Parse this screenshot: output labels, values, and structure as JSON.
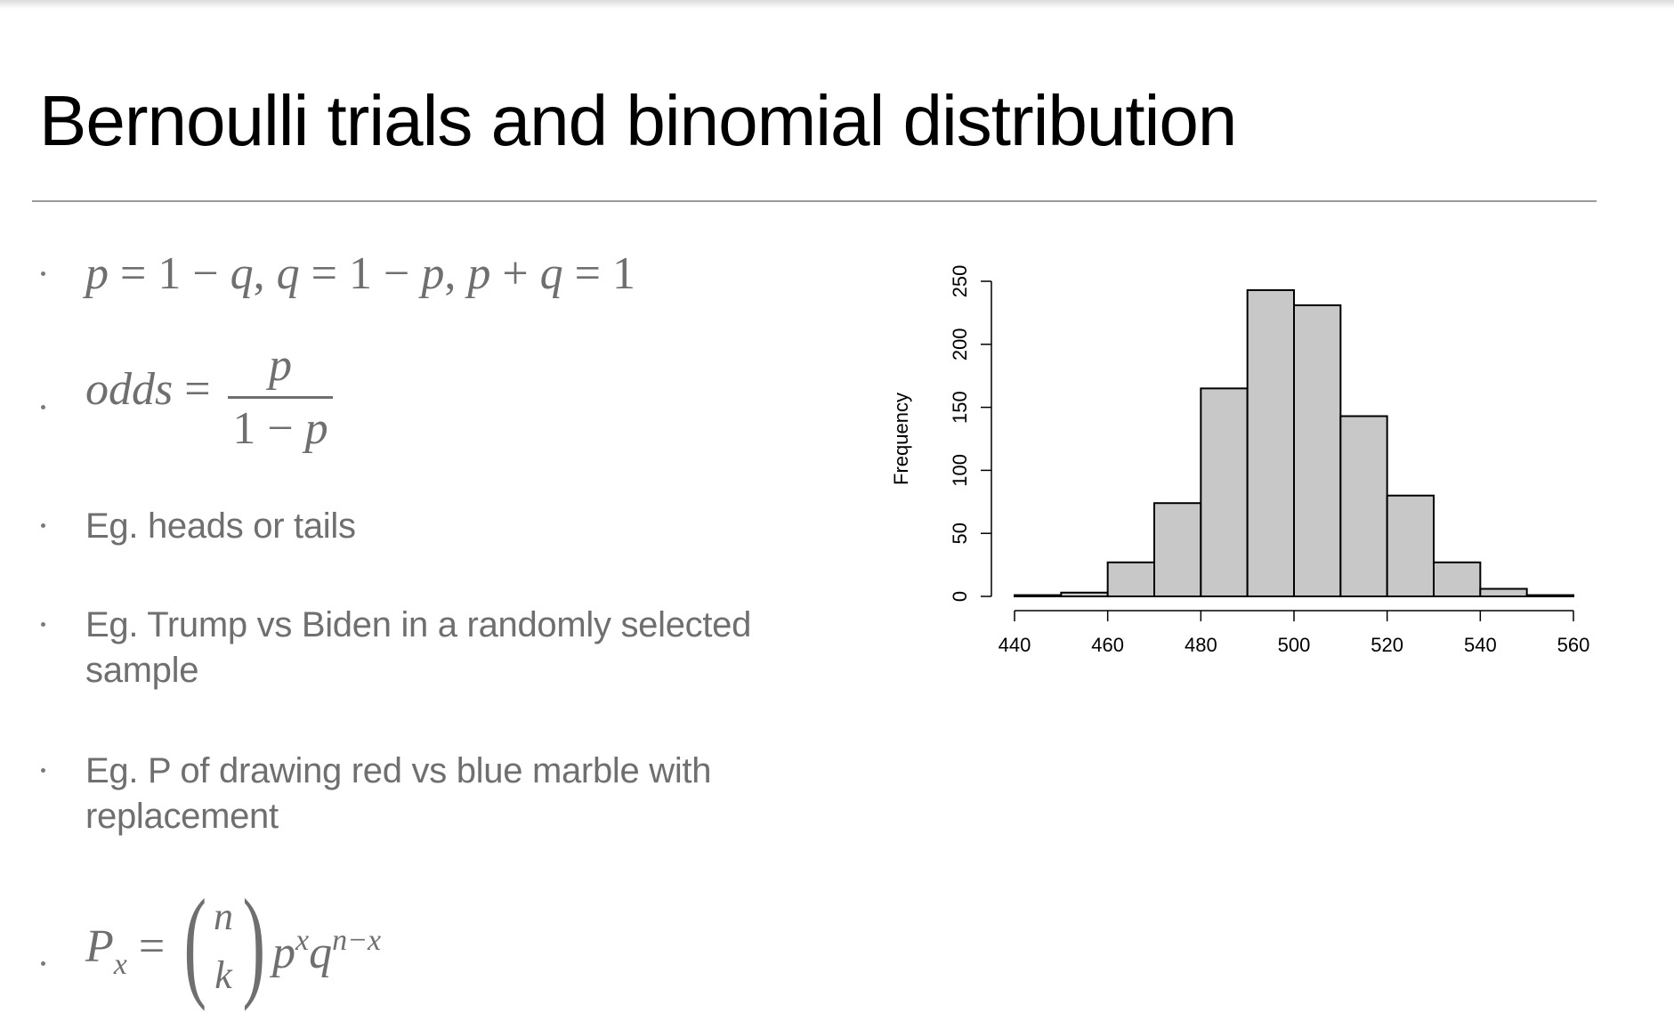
{
  "slide": {
    "title": "Bernoulli trials and binomial distribution"
  },
  "bullets": {
    "b1": {
      "p": "p",
      "eq1": " = 1 − ",
      "q": "q",
      "comma1": ", ",
      "q2": "q",
      "eq2": " = 1 − ",
      "p2": "p",
      "comma2": ", ",
      "p3": "p",
      "plus": " + ",
      "q3": "q",
      "eq3": " = 1"
    },
    "b2": {
      "lhs": "odds",
      "eq": " = ",
      "num": "p",
      "den_one": "1 − ",
      "den_p": "p"
    },
    "b3": {
      "text": "Eg. heads or tails"
    },
    "b4": {
      "line1": "Eg. Trump vs Biden in a randomly selected",
      "line2": "sample"
    },
    "b5": {
      "line1": "Eg. P of drawing red vs blue marble with",
      "line2": "replacement"
    },
    "b6": {
      "P": "P",
      "sub": "x",
      "eq": " = ",
      "n": "n",
      "k": "k",
      "p": "p",
      "pexp": "x",
      "q": "q",
      "qexp": "n−x"
    }
  },
  "chart_data": {
    "type": "bar",
    "bins": [
      [
        440,
        450
      ],
      [
        450,
        460
      ],
      [
        460,
        470
      ],
      [
        470,
        480
      ],
      [
        480,
        490
      ],
      [
        490,
        500
      ],
      [
        500,
        510
      ],
      [
        510,
        520
      ],
      [
        520,
        530
      ],
      [
        530,
        540
      ],
      [
        540,
        550
      ],
      [
        550,
        560
      ]
    ],
    "values": [
      1,
      3,
      27,
      74,
      165,
      243,
      231,
      143,
      80,
      27,
      6,
      1
    ],
    "xlim": [
      440,
      560
    ],
    "xticks": [
      "440",
      "460",
      "480",
      "500",
      "520",
      "540",
      "560"
    ],
    "ylim": [
      0,
      250
    ],
    "yticks": [
      "0",
      "50",
      "100",
      "150",
      "200",
      "250"
    ],
    "ylabel": "Frequency",
    "xlabel": "",
    "title": "",
    "bar_color": "#c8c8c8",
    "edge_color": "#000000"
  }
}
